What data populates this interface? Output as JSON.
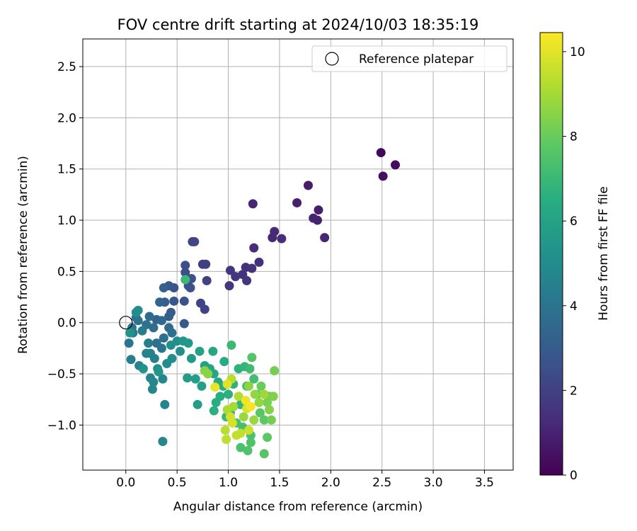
{
  "chart_data": {
    "type": "scatter",
    "title": "FOV centre drift starting at 2024/10/03 18:35:19",
    "xlabel": "Angular distance from reference (arcmin)",
    "ylabel": "Rotation from reference (arcmin)",
    "xlim": [
      -0.42,
      3.78
    ],
    "ylim": [
      -1.44,
      2.77
    ],
    "xticks": [
      0.0,
      0.5,
      1.0,
      1.5,
      2.0,
      2.5,
      3.0,
      3.5
    ],
    "xtick_labels": [
      "0.0",
      "0.5",
      "1.0",
      "1.5",
      "2.0",
      "2.5",
      "3.0",
      "3.5"
    ],
    "yticks": [
      -1.0,
      -0.5,
      0.0,
      0.5,
      1.0,
      1.5,
      2.0,
      2.5
    ],
    "ytick_labels": [
      "−1.0",
      "−0.5",
      "0.0",
      "0.5",
      "1.0",
      "1.5",
      "2.0",
      "2.5"
    ],
    "grid": true,
    "legend": {
      "location": "top-right",
      "entries": [
        "Reference platepar"
      ]
    },
    "reference_point": {
      "x": 0.0,
      "y": 0.0
    },
    "colorbar": {
      "label": "Hours from first FF file",
      "colormap": "viridis",
      "range": [
        0,
        10.45
      ],
      "ticks": [
        0,
        2,
        4,
        6,
        8,
        10
      ],
      "tick_labels": [
        "0",
        "2",
        "4",
        "6",
        "8",
        "10"
      ]
    },
    "points": [
      {
        "x": 2.49,
        "y": 1.66,
        "h": 0.2
      },
      {
        "x": 2.63,
        "y": 1.54,
        "h": 0.3
      },
      {
        "x": 2.51,
        "y": 1.43,
        "h": 0.4
      },
      {
        "x": 1.78,
        "y": 1.34,
        "h": 0.8
      },
      {
        "x": 1.67,
        "y": 1.17,
        "h": 0.9
      },
      {
        "x": 1.88,
        "y": 1.1,
        "h": 0.9
      },
      {
        "x": 1.83,
        "y": 1.02,
        "h": 1.0
      },
      {
        "x": 1.87,
        "y": 1.0,
        "h": 1.0
      },
      {
        "x": 1.94,
        "y": 0.83,
        "h": 1.1
      },
      {
        "x": 1.24,
        "y": 1.16,
        "h": 1.1
      },
      {
        "x": 1.45,
        "y": 0.89,
        "h": 1.2
      },
      {
        "x": 1.43,
        "y": 0.83,
        "h": 1.2
      },
      {
        "x": 1.52,
        "y": 0.82,
        "h": 1.3
      },
      {
        "x": 1.25,
        "y": 0.73,
        "h": 1.3
      },
      {
        "x": 1.3,
        "y": 0.59,
        "h": 1.4
      },
      {
        "x": 1.17,
        "y": 0.54,
        "h": 1.4
      },
      {
        "x": 1.23,
        "y": 0.53,
        "h": 1.5
      },
      {
        "x": 1.14,
        "y": 0.47,
        "h": 1.5
      },
      {
        "x": 1.07,
        "y": 0.45,
        "h": 1.6
      },
      {
        "x": 1.02,
        "y": 0.51,
        "h": 1.6
      },
      {
        "x": 1.18,
        "y": 0.41,
        "h": 1.6
      },
      {
        "x": 1.01,
        "y": 0.36,
        "h": 1.7
      },
      {
        "x": 0.75,
        "y": 0.57,
        "h": 1.9
      },
      {
        "x": 0.78,
        "y": 0.57,
        "h": 1.9
      },
      {
        "x": 0.79,
        "y": 0.41,
        "h": 2.0
      },
      {
        "x": 0.73,
        "y": 0.19,
        "h": 2.1
      },
      {
        "x": 0.77,
        "y": 0.13,
        "h": 2.1
      },
      {
        "x": 0.65,
        "y": 0.79,
        "h": 2.2
      },
      {
        "x": 0.67,
        "y": 0.79,
        "h": 2.2
      },
      {
        "x": 0.58,
        "y": 0.56,
        "h": 2.5
      },
      {
        "x": 0.58,
        "y": 0.49,
        "h": 2.5
      },
      {
        "x": 0.64,
        "y": 0.43,
        "h": 2.6
      },
      {
        "x": 0.61,
        "y": 0.36,
        "h": 2.6
      },
      {
        "x": 0.63,
        "y": 0.34,
        "h": 2.6
      },
      {
        "x": 0.57,
        "y": 0.21,
        "h": 2.6
      },
      {
        "x": 0.47,
        "y": 0.34,
        "h": 2.7
      },
      {
        "x": 0.42,
        "y": 0.36,
        "h": 2.8
      },
      {
        "x": 0.47,
        "y": 0.21,
        "h": 2.8
      },
      {
        "x": 0.57,
        "y": -0.01,
        "h": 2.9
      },
      {
        "x": 0.44,
        "y": 0.1,
        "h": 3.0
      },
      {
        "x": 0.42,
        "y": 0.06,
        "h": 3.1
      },
      {
        "x": 0.38,
        "y": 0.2,
        "h": 3.2
      },
      {
        "x": 0.37,
        "y": 0.34,
        "h": 3.3
      },
      {
        "x": 0.33,
        "y": 0.2,
        "h": 3.4
      },
      {
        "x": 0.3,
        "y": 0.03,
        "h": 3.4
      },
      {
        "x": 0.35,
        "y": 0.02,
        "h": 3.5
      },
      {
        "x": 0.23,
        "y": 0.06,
        "h": 3.6
      },
      {
        "x": 0.27,
        "y": -0.05,
        "h": 3.7
      },
      {
        "x": 0.42,
        "y": -0.05,
        "h": 3.6
      },
      {
        "x": 0.45,
        "y": -0.1,
        "h": 3.8
      },
      {
        "x": 0.37,
        "y": -0.15,
        "h": 3.8
      },
      {
        "x": 0.3,
        "y": -0.2,
        "h": 3.9
      },
      {
        "x": 0.35,
        "y": -0.25,
        "h": 4.0
      },
      {
        "x": 0.2,
        "y": -0.02,
        "h": 3.9
      },
      {
        "x": 0.12,
        "y": 0.02,
        "h": 3.9
      },
      {
        "x": 0.1,
        "y": 0.05,
        "h": 4.0
      },
      {
        "x": 0.06,
        "y": -0.05,
        "h": 4.1
      },
      {
        "x": 0.03,
        "y": -0.2,
        "h": 4.1
      },
      {
        "x": 0.07,
        "y": -0.1,
        "h": 4.3
      },
      {
        "x": 0.16,
        "y": -0.08,
        "h": 4.3
      },
      {
        "x": 0.22,
        "y": -0.2,
        "h": 4.4
      },
      {
        "x": 0.24,
        "y": -0.3,
        "h": 4.5
      },
      {
        "x": 0.28,
        "y": -0.35,
        "h": 4.5
      },
      {
        "x": 0.2,
        "y": -0.3,
        "h": 4.6
      },
      {
        "x": 0.05,
        "y": -0.36,
        "h": 4.4
      },
      {
        "x": 0.13,
        "y": -0.42,
        "h": 4.6
      },
      {
        "x": 0.24,
        "y": -0.54,
        "h": 4.7
      },
      {
        "x": 0.27,
        "y": -0.58,
        "h": 4.8
      },
      {
        "x": 0.26,
        "y": -0.65,
        "h": 4.7
      },
      {
        "x": 0.36,
        "y": -0.55,
        "h": 4.8
      },
      {
        "x": 0.38,
        "y": -0.8,
        "h": 4.7
      },
      {
        "x": 0.36,
        "y": -1.16,
        "h": 4.8
      },
      {
        "x": 0.31,
        "y": -0.45,
        "h": 5.0
      },
      {
        "x": 0.4,
        "y": -0.4,
        "h": 5.0
      },
      {
        "x": 0.45,
        "y": -0.35,
        "h": 5.0
      },
      {
        "x": 0.44,
        "y": -0.22,
        "h": 5.1
      },
      {
        "x": 0.5,
        "y": -0.18,
        "h": 5.2
      },
      {
        "x": 0.53,
        "y": -0.28,
        "h": 5.2
      },
      {
        "x": 0.1,
        "y": 0.1,
        "h": 5.1
      },
      {
        "x": 0.12,
        "y": 0.12,
        "h": 5.0
      },
      {
        "x": 0.04,
        "y": -0.1,
        "h": 5.3
      },
      {
        "x": 0.17,
        "y": -0.45,
        "h": 5.3
      },
      {
        "x": 0.32,
        "y": -0.48,
        "h": 5.4
      },
      {
        "x": 0.56,
        "y": -0.18,
        "h": 5.5
      },
      {
        "x": 0.61,
        "y": -0.2,
        "h": 5.6
      },
      {
        "x": 0.64,
        "y": -0.35,
        "h": 5.6
      },
      {
        "x": 0.6,
        "y": -0.54,
        "h": 5.7
      },
      {
        "x": 0.68,
        "y": -0.55,
        "h": 5.8
      },
      {
        "x": 0.7,
        "y": -0.8,
        "h": 5.8
      },
      {
        "x": 0.74,
        "y": -0.62,
        "h": 5.9
      },
      {
        "x": 0.72,
        "y": -0.28,
        "h": 6.0
      },
      {
        "x": 0.77,
        "y": -0.42,
        "h": 6.0
      },
      {
        "x": 0.82,
        "y": -0.45,
        "h": 6.1
      },
      {
        "x": 0.85,
        "y": -0.28,
        "h": 6.2
      },
      {
        "x": 0.86,
        "y": -0.5,
        "h": 6.2
      },
      {
        "x": 0.9,
        "y": -0.58,
        "h": 6.3
      },
      {
        "x": 0.96,
        "y": -0.38,
        "h": 6.4
      },
      {
        "x": 0.95,
        "y": -0.62,
        "h": 6.4
      },
      {
        "x": 0.92,
        "y": -0.72,
        "h": 6.5
      },
      {
        "x": 0.88,
        "y": -0.78,
        "h": 6.5
      },
      {
        "x": 0.86,
        "y": -0.86,
        "h": 6.6
      },
      {
        "x": 1.0,
        "y": -0.7,
        "h": 6.6
      },
      {
        "x": 1.05,
        "y": -0.6,
        "h": 6.7
      },
      {
        "x": 1.1,
        "y": -0.45,
        "h": 6.7
      },
      {
        "x": 1.16,
        "y": -0.43,
        "h": 6.8
      },
      {
        "x": 1.12,
        "y": -0.8,
        "h": 6.8
      },
      {
        "x": 1.02,
        "y": -0.88,
        "h": 6.9
      },
      {
        "x": 0.98,
        "y": -0.92,
        "h": 6.9
      },
      {
        "x": 1.03,
        "y": -0.22,
        "h": 7.0
      },
      {
        "x": 0.58,
        "y": 0.42,
        "h": 7.0
      },
      {
        "x": 1.21,
        "y": -0.45,
        "h": 7.1
      },
      {
        "x": 1.25,
        "y": -0.55,
        "h": 7.2
      },
      {
        "x": 1.18,
        "y": -0.62,
        "h": 7.2
      },
      {
        "x": 1.08,
        "y": -0.98,
        "h": 7.3
      },
      {
        "x": 1.14,
        "y": -1.02,
        "h": 7.3
      },
      {
        "x": 1.22,
        "y": -1.1,
        "h": 7.4
      },
      {
        "x": 1.12,
        "y": -1.22,
        "h": 7.4
      },
      {
        "x": 1.19,
        "y": -1.25,
        "h": 7.5
      },
      {
        "x": 1.22,
        "y": -1.17,
        "h": 7.5
      },
      {
        "x": 1.35,
        "y": -1.28,
        "h": 7.6
      },
      {
        "x": 1.23,
        "y": -0.34,
        "h": 7.6
      },
      {
        "x": 1.28,
        "y": -0.7,
        "h": 7.7
      },
      {
        "x": 1.31,
        "y": -0.88,
        "h": 7.7
      },
      {
        "x": 1.35,
        "y": -0.95,
        "h": 7.8
      },
      {
        "x": 1.38,
        "y": -1.12,
        "h": 7.8
      },
      {
        "x": 1.4,
        "y": -0.72,
        "h": 7.9
      },
      {
        "x": 1.32,
        "y": -0.62,
        "h": 8.0
      },
      {
        "x": 1.45,
        "y": -0.47,
        "h": 8.2
      },
      {
        "x": 1.42,
        "y": -0.95,
        "h": 8.2
      },
      {
        "x": 1.38,
        "y": -0.78,
        "h": 8.3
      },
      {
        "x": 1.44,
        "y": -0.72,
        "h": 8.4
      },
      {
        "x": 1.4,
        "y": -0.85,
        "h": 8.5
      },
      {
        "x": 0.77,
        "y": -0.47,
        "h": 8.5
      },
      {
        "x": 0.8,
        "y": -0.5,
        "h": 8.6
      },
      {
        "x": 1.2,
        "y": -0.62,
        "h": 8.6
      },
      {
        "x": 1.26,
        "y": -0.7,
        "h": 8.7
      },
      {
        "x": 1.3,
        "y": -0.78,
        "h": 8.7
      },
      {
        "x": 1.15,
        "y": -0.92,
        "h": 8.8
      },
      {
        "x": 1.25,
        "y": -0.95,
        "h": 8.8
      },
      {
        "x": 1.35,
        "y": -0.7,
        "h": 8.9
      },
      {
        "x": 1.05,
        "y": -0.82,
        "h": 9.0
      },
      {
        "x": 0.99,
        "y": -0.85,
        "h": 9.1
      },
      {
        "x": 1.1,
        "y": -0.72,
        "h": 9.2
      },
      {
        "x": 1.03,
        "y": -0.55,
        "h": 9.3
      },
      {
        "x": 0.97,
        "y": -1.05,
        "h": 9.3
      },
      {
        "x": 0.98,
        "y": -1.14,
        "h": 9.4
      },
      {
        "x": 1.08,
        "y": -1.1,
        "h": 9.5
      },
      {
        "x": 1.12,
        "y": -1.08,
        "h": 9.5
      },
      {
        "x": 1.2,
        "y": -1.05,
        "h": 9.6
      },
      {
        "x": 1.02,
        "y": -0.92,
        "h": 9.7
      },
      {
        "x": 1.04,
        "y": -0.98,
        "h": 9.8
      },
      {
        "x": 1.18,
        "y": -0.84,
        "h": 9.9
      },
      {
        "x": 0.99,
        "y": -0.6,
        "h": 10.0
      },
      {
        "x": 0.87,
        "y": -0.63,
        "h": 10.1
      },
      {
        "x": 1.17,
        "y": -0.76,
        "h": 10.2
      },
      {
        "x": 1.22,
        "y": -0.82,
        "h": 10.3
      }
    ]
  }
}
